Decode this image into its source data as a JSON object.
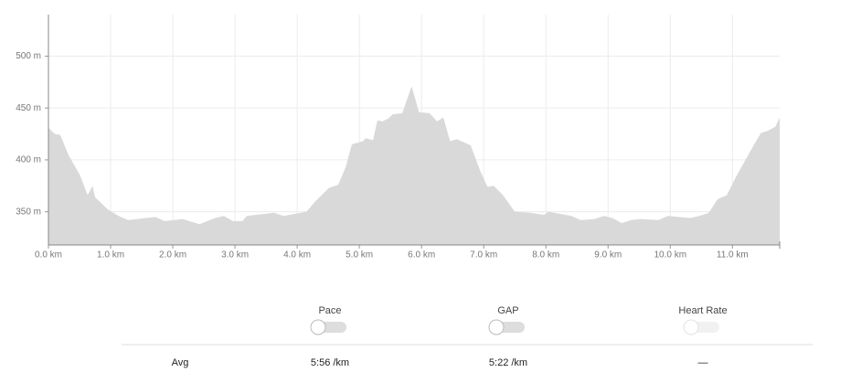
{
  "chart_data": {
    "type": "area",
    "color": "#d9d9d9",
    "x": [
      0.0,
      0.1,
      0.19,
      0.32,
      0.51,
      0.63,
      0.71,
      0.75,
      0.96,
      1.13,
      1.28,
      1.57,
      1.72,
      1.87,
      2.16,
      2.43,
      2.68,
      2.82,
      2.97,
      3.12,
      3.19,
      3.63,
      3.78,
      4.15,
      4.29,
      4.51,
      4.66,
      4.78,
      4.88,
      5.06,
      5.1,
      5.22,
      5.29,
      5.37,
      5.47,
      5.54,
      5.69,
      5.84,
      5.96,
      6.13,
      6.25,
      6.35,
      6.46,
      6.57,
      6.79,
      6.94,
      7.06,
      7.16,
      7.31,
      7.5,
      7.75,
      7.97,
      8.04,
      8.41,
      8.56,
      8.78,
      8.93,
      9.07,
      9.22,
      9.37,
      9.51,
      9.81,
      9.96,
      10.32,
      10.47,
      10.62,
      10.76,
      10.91,
      11.06,
      11.21,
      11.35,
      11.46,
      11.57,
      11.69,
      11.76
    ],
    "y": [
      431,
      425,
      424,
      405,
      385,
      366,
      375,
      364,
      352,
      346,
      342,
      344,
      345,
      341,
      343,
      338,
      344,
      346,
      341,
      341,
      346,
      349,
      346,
      350,
      360,
      373,
      376,
      393,
      415,
      418,
      421,
      419,
      438,
      437,
      440,
      444,
      445,
      471,
      446,
      445,
      437,
      441,
      418,
      420,
      414,
      390,
      374,
      375,
      366,
      350,
      349,
      347,
      350,
      346,
      342,
      343,
      346,
      344,
      339,
      342,
      343,
      342,
      346,
      344,
      346,
      349,
      362,
      366,
      384,
      400,
      415,
      426,
      428,
      432,
      441
    ],
    "xlim": [
      0,
      11.76
    ],
    "ylim": [
      318,
      540
    ],
    "xticks": [
      {
        "value": 0,
        "label": "0.0 km"
      },
      {
        "value": 1,
        "label": "1.0 km"
      },
      {
        "value": 2,
        "label": "2.0 km"
      },
      {
        "value": 3,
        "label": "3.0 km"
      },
      {
        "value": 4,
        "label": "4.0 km"
      },
      {
        "value": 5,
        "label": "5.0 km"
      },
      {
        "value": 6,
        "label": "6.0 km"
      },
      {
        "value": 7,
        "label": "7.0 km"
      },
      {
        "value": 8,
        "label": "8.0 km"
      },
      {
        "value": 9,
        "label": "9.0 km"
      },
      {
        "value": 10,
        "label": "10.0 km"
      },
      {
        "value": 11,
        "label": "11.0 km"
      }
    ],
    "yticks": [
      {
        "value": 350,
        "label": "350 m"
      },
      {
        "value": 400,
        "label": "400 m"
      },
      {
        "value": 450,
        "label": "450 m"
      },
      {
        "value": 500,
        "label": "500 m"
      }
    ],
    "grid": true
  },
  "toggles": [
    {
      "label": "Pace",
      "disabled": false
    },
    {
      "label": "GAP",
      "disabled": false
    },
    {
      "label": "Heart Rate",
      "disabled": true
    }
  ],
  "stats": {
    "label": "Avg",
    "values": [
      "5:56 /km",
      "5:22 /km",
      "—"
    ]
  }
}
